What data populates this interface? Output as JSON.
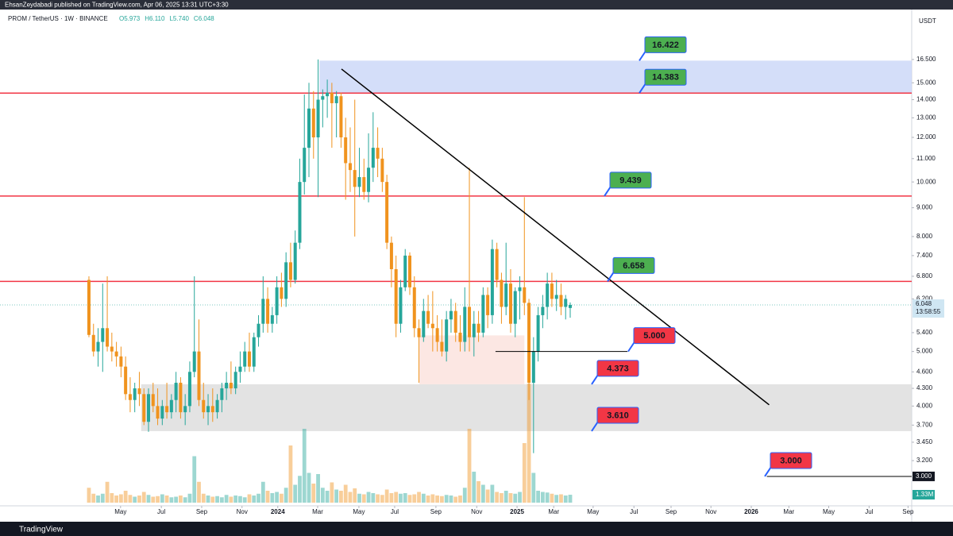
{
  "header": {
    "publisher": "EhsanZeydabadi published on TradingView.com, Apr 06, 2025 13:31 UTC+3:30"
  },
  "chart_data": {
    "type": "candlestick",
    "title": "PROM / TetherUS · 1W · BINANCE",
    "ohlc_legend": [
      "O5.973",
      "H6.110",
      "L5.740",
      "C6.048"
    ],
    "currency": "USDT",
    "log_scale": true,
    "colors": {
      "up": "#26a69a",
      "down": "#f0931e",
      "level": "#f23645",
      "trend": "#000000"
    },
    "candles": [
      [
        6.7,
        6.8,
        5.3,
        5.35
      ],
      [
        5.35,
        5.6,
        4.9,
        5.0
      ],
      [
        5.0,
        5.5,
        4.7,
        5.2
      ],
      [
        5.2,
        6.6,
        4.6,
        5.5
      ],
      [
        5.5,
        6.8,
        5.0,
        5.1
      ],
      [
        5.1,
        5.4,
        4.8,
        5.0
      ],
      [
        5.0,
        5.2,
        4.7,
        4.9
      ],
      [
        4.9,
        5.1,
        4.5,
        4.7
      ],
      [
        4.7,
        4.9,
        4.1,
        4.2
      ],
      [
        4.2,
        4.5,
        3.9,
        4.1
      ],
      [
        4.1,
        4.4,
        3.9,
        4.3
      ],
      [
        4.3,
        4.6,
        4.0,
        4.2
      ],
      [
        4.2,
        4.3,
        3.7,
        3.75
      ],
      [
        3.75,
        4.3,
        3.6,
        4.2
      ],
      [
        4.2,
        4.4,
        3.9,
        4.0
      ],
      [
        4.0,
        4.3,
        3.7,
        3.8
      ],
      [
        3.8,
        4.1,
        3.7,
        4.0
      ],
      [
        4.0,
        4.4,
        3.8,
        3.9
      ],
      [
        3.9,
        4.2,
        3.8,
        4.1
      ],
      [
        4.1,
        4.6,
        3.9,
        4.4
      ],
      [
        4.4,
        4.5,
        3.8,
        3.9
      ],
      [
        3.9,
        4.2,
        3.7,
        4.0
      ],
      [
        4.0,
        4.8,
        3.9,
        4.6
      ],
      [
        4.6,
        6.8,
        4.5,
        5.0
      ],
      [
        5.0,
        5.7,
        4.0,
        4.1
      ],
      [
        4.1,
        4.4,
        3.8,
        3.9
      ],
      [
        3.9,
        4.2,
        3.7,
        4.0
      ],
      [
        4.0,
        4.3,
        3.75,
        3.9
      ],
      [
        3.9,
        4.2,
        3.8,
        4.1
      ],
      [
        4.1,
        4.4,
        3.9,
        4.3
      ],
      [
        4.3,
        4.6,
        4.1,
        4.4
      ],
      [
        4.4,
        4.8,
        4.2,
        4.3
      ],
      [
        4.3,
        4.7,
        4.2,
        4.6
      ],
      [
        4.6,
        5.0,
        4.4,
        4.7
      ],
      [
        4.7,
        5.2,
        4.6,
        5.0
      ],
      [
        5.0,
        5.4,
        4.6,
        4.7
      ],
      [
        4.7,
        5.4,
        4.6,
        5.3
      ],
      [
        5.3,
        5.8,
        5.1,
        5.6
      ],
      [
        5.6,
        6.8,
        5.4,
        6.2
      ],
      [
        6.2,
        6.5,
        5.4,
        5.6
      ],
      [
        5.6,
        6.0,
        5.4,
        5.8
      ],
      [
        5.8,
        6.8,
        5.6,
        6.5
      ],
      [
        6.5,
        6.9,
        6.0,
        6.2
      ],
      [
        6.2,
        7.5,
        6.0,
        7.2
      ],
      [
        7.2,
        7.8,
        6.5,
        6.7
      ],
      [
        6.7,
        8.2,
        6.6,
        7.8
      ],
      [
        7.8,
        11.0,
        7.6,
        10.0
      ],
      [
        10.0,
        14.3,
        9.5,
        11.5
      ],
      [
        11.5,
        15.0,
        10.2,
        13.5
      ],
      [
        13.5,
        14.5,
        11.0,
        12.0
      ],
      [
        12.0,
        16.5,
        9.4,
        14.0
      ],
      [
        14.0,
        14.6,
        12.5,
        14.2
      ],
      [
        14.2,
        15.2,
        13.0,
        14.4
      ],
      [
        14.4,
        15.0,
        11.5,
        13.8
      ],
      [
        13.8,
        14.5,
        12.0,
        14.2
      ],
      [
        14.2,
        14.4,
        11.5,
        12.0
      ],
      [
        12.0,
        13.0,
        9.3,
        10.8
      ],
      [
        10.8,
        12.5,
        9.6,
        10.5
      ],
      [
        10.5,
        14.0,
        8.0,
        9.8
      ],
      [
        9.8,
        11.5,
        9.4,
        10.2
      ],
      [
        10.2,
        11.0,
        9.3,
        9.6
      ],
      [
        9.6,
        12.2,
        9.2,
        10.6
      ],
      [
        10.6,
        13.3,
        10.0,
        11.5
      ],
      [
        11.5,
        12.5,
        10.2,
        11.0
      ],
      [
        11.0,
        11.5,
        9.6,
        10.0
      ],
      [
        10.0,
        10.3,
        7.6,
        7.8
      ],
      [
        7.8,
        8.0,
        6.5,
        7.0
      ],
      [
        7.0,
        7.4,
        5.3,
        5.6
      ],
      [
        5.6,
        6.7,
        5.4,
        6.5
      ],
      [
        6.5,
        7.6,
        6.4,
        7.4
      ],
      [
        7.4,
        7.5,
        6.3,
        6.5
      ],
      [
        6.5,
        6.8,
        5.3,
        5.5
      ],
      [
        5.5,
        5.7,
        4.4,
        5.3
      ],
      [
        5.3,
        6.2,
        5.2,
        5.9
      ],
      [
        5.9,
        6.3,
        5.5,
        5.6
      ],
      [
        5.6,
        6.4,
        5.0,
        5.5
      ],
      [
        5.5,
        5.8,
        5.0,
        5.2
      ],
      [
        5.2,
        5.7,
        4.9,
        5.0
      ],
      [
        5.0,
        5.9,
        4.8,
        5.7
      ],
      [
        5.7,
        6.2,
        5.4,
        5.9
      ],
      [
        5.9,
        6.1,
        5.2,
        5.4
      ],
      [
        5.4,
        5.8,
        5.0,
        5.2
      ],
      [
        5.2,
        6.5,
        5.0,
        6.0
      ],
      [
        6.0,
        10.6,
        5.0,
        5.3
      ],
      [
        5.3,
        5.9,
        4.9,
        5.6
      ],
      [
        5.6,
        5.9,
        5.2,
        5.4
      ],
      [
        5.4,
        6.5,
        5.3,
        6.3
      ],
      [
        6.3,
        6.5,
        5.5,
        5.8
      ],
      [
        5.8,
        7.9,
        5.6,
        7.6
      ],
      [
        7.6,
        7.8,
        6.5,
        6.7
      ],
      [
        6.7,
        6.9,
        5.6,
        6.0
      ],
      [
        6.0,
        7.8,
        5.8,
        6.6
      ],
      [
        6.6,
        7.0,
        5.4,
        5.6
      ],
      [
        5.6,
        6.5,
        5.3,
        6.4
      ],
      [
        6.4,
        6.8,
        5.7,
        6.5
      ],
      [
        6.5,
        9.4,
        5.8,
        6.1
      ],
      [
        6.1,
        6.2,
        4.1,
        4.4
      ],
      [
        4.4,
        5.3,
        3.3,
        5.0
      ],
      [
        5.0,
        6.0,
        4.8,
        5.8
      ],
      [
        5.8,
        6.3,
        5.5,
        6.0
      ],
      [
        6.0,
        6.9,
        5.7,
        6.6
      ],
      [
        6.6,
        6.9,
        6.0,
        6.2
      ],
      [
        6.2,
        6.7,
        5.9,
        6.3
      ],
      [
        6.3,
        6.6,
        5.8,
        6.0
      ],
      [
        6.0,
        6.3,
        5.7,
        6.2
      ],
      [
        5.973,
        6.11,
        5.74,
        6.048
      ]
    ],
    "volume": [
      2.5,
      1.5,
      1.2,
      1.5,
      3.5,
      1.6,
      1.2,
      1.4,
      2.0,
      1.3,
      1.0,
      1.2,
      1.8,
      1.3,
      1.0,
      1.1,
      1.4,
      1.2,
      0.9,
      1.0,
      1.2,
      0.9,
      1.5,
      7.8,
      3.5,
      1.5,
      1.2,
      1.0,
      1.1,
      0.9,
      1.3,
      1.0,
      1.2,
      1.1,
      0.9,
      1.4,
      1.2,
      1.5,
      3.5,
      2.0,
      1.6,
      1.8,
      1.5,
      2.5,
      9.6,
      3.0,
      4.5,
      12.4,
      5.0,
      3.2,
      4.8,
      2.5,
      2.0,
      3.4,
      2.2,
      2.0,
      3.0,
      1.8,
      2.4,
      1.5,
      1.4,
      1.8,
      1.6,
      1.4,
      1.3,
      2.2,
      1.6,
      1.8,
      1.5,
      1.6,
      1.3,
      1.4,
      1.8,
      1.5,
      1.2,
      1.4,
      1.2,
      1.1,
      1.3,
      1.2,
      1.0,
      1.2,
      2.5,
      12.4,
      5.2,
      3.6,
      3.0,
      2.2,
      3.0,
      1.8,
      1.6,
      2.0,
      1.6,
      1.5,
      1.8,
      10.0,
      20.0,
      5.0,
      2.0,
      1.8,
      1.7,
      1.5,
      1.3,
      1.4,
      1.2,
      1.33
    ],
    "volume_label": "1.33M",
    "ylim": [
      2.55,
      20.24
    ],
    "yticks": [
      {
        "value": 16.5,
        "label": "16.500"
      },
      {
        "value": 15,
        "label": "15.000"
      },
      {
        "value": 14,
        "label": "14.000"
      },
      {
        "value": 13,
        "label": "13.000"
      },
      {
        "value": 12,
        "label": "12.000"
      },
      {
        "value": 11,
        "label": "11.000"
      },
      {
        "value": 10,
        "label": "10.000"
      },
      {
        "value": 9,
        "label": "9.000"
      },
      {
        "value": 8,
        "label": "8.000"
      },
      {
        "value": 7.4,
        "label": "7.400"
      },
      {
        "value": 6.8,
        "label": "6.800"
      },
      {
        "value": 6.2,
        "label": "6.200"
      },
      {
        "value": 5.4,
        "label": "5.400"
      },
      {
        "value": 5,
        "label": "5.000"
      },
      {
        "value": 4.6,
        "label": "4.600"
      },
      {
        "value": 4.3,
        "label": "4.300"
      },
      {
        "value": 4,
        "label": "4.000"
      },
      {
        "value": 3.7,
        "label": "3.700"
      },
      {
        "value": 3.45,
        "label": "3.450"
      },
      {
        "value": 3.2,
        "label": "3.200"
      }
    ],
    "xlim": [
      -19.4,
      179.5
    ],
    "xticks": [
      {
        "value": 6.9,
        "label": "May"
      },
      {
        "value": 15.8,
        "label": "Jul"
      },
      {
        "value": 24.6,
        "label": "Sep"
      },
      {
        "value": 33.4,
        "label": "Nov"
      },
      {
        "value": 41.2,
        "label": "2024"
      },
      {
        "value": 49.9,
        "label": "Mar"
      },
      {
        "value": 58.9,
        "label": "May"
      },
      {
        "value": 66.7,
        "label": "Jul"
      },
      {
        "value": 75.7,
        "label": "Sep"
      },
      {
        "value": 84.6,
        "label": "Nov"
      },
      {
        "value": 93.4,
        "label": "2025"
      },
      {
        "value": 101.4,
        "label": "Mar"
      },
      {
        "value": 110,
        "label": "May"
      },
      {
        "value": 118.9,
        "label": "Jul"
      },
      {
        "value": 127,
        "label": "Sep"
      },
      {
        "value": 135.7,
        "label": "Nov"
      },
      {
        "value": 144.5,
        "label": "2026"
      },
      {
        "value": 152.7,
        "label": "Mar"
      },
      {
        "value": 161.4,
        "label": "May"
      },
      {
        "value": 170.2,
        "label": "Jul"
      },
      {
        "value": 178.7,
        "label": "Sep"
      }
    ],
    "levels": [
      14.383,
      9.439,
      6.658
    ],
    "zones": [
      {
        "x": [
          50.3,
          179.5
        ],
        "y": [
          14.383,
          16.422
        ],
        "color": "#c9d6f7"
      },
      {
        "x": [
          11.4,
          179.5
        ],
        "y": [
          3.61,
          4.373
        ],
        "color": "#dcdcdc"
      },
      {
        "x": [
          72.1,
          95
        ],
        "y": [
          4.373,
          5.34
        ],
        "color": "#fbe1dc"
      }
    ],
    "segments": [
      {
        "x": [
          88.7,
          117.5
        ],
        "value": 5
      },
      {
        "x": [
          147.9,
          179.5
        ],
        "value": 3,
        "label": "3.000"
      }
    ],
    "trendline": {
      "x": [
        55.1,
        148.4
      ],
      "y": [
        15.87,
        4.02
      ]
    },
    "annotations": [
      {
        "value": 16.422,
        "label": "16.422",
        "color": "#4caf50"
      },
      {
        "value": 14.383,
        "label": "14.383",
        "color": "#4caf50"
      },
      {
        "value": 9.439,
        "label": "9.439",
        "color": "#4caf50"
      },
      {
        "value": 6.658,
        "label": "6.658",
        "color": "#4caf50"
      },
      {
        "value": 5,
        "label": "5.000",
        "color": "#f23645"
      },
      {
        "value": 4.373,
        "label": "4.373",
        "color": "#f23645"
      },
      {
        "value": 3.61,
        "label": "3.610",
        "color": "#f23645"
      },
      {
        "value": 3,
        "label": "3.000",
        "color": "#f23645"
      }
    ],
    "last_price": {
      "value": 6.048,
      "countdown": "13:58:55"
    }
  },
  "footer": {
    "brand": "TradingView"
  }
}
